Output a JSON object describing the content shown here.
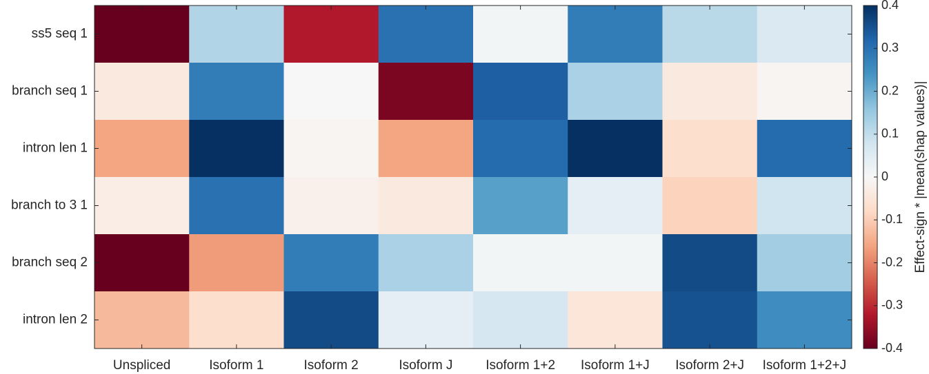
{
  "chart_data": {
    "type": "heatmap",
    "rows": [
      "ss5 seq 1",
      "branch seq 1",
      "intron len 1",
      "branch to 3 1",
      "branch seq 2",
      "intron len 2"
    ],
    "columns": [
      "Unspliced",
      "Isoform 1",
      "Isoform 2",
      "Isoform J",
      "Isoform 1+2",
      "Isoform 1+J",
      "Isoform 2+J",
      "Isoform 1+2+J"
    ],
    "values": [
      [
        -0.4,
        0.12,
        -0.32,
        0.3,
        0.01,
        0.28,
        0.11,
        0.06
      ],
      [
        -0.04,
        0.28,
        0.0,
        -0.38,
        0.33,
        0.13,
        -0.04,
        -0.01
      ],
      [
        -0.16,
        0.4,
        -0.01,
        -0.16,
        0.31,
        0.41,
        -0.07,
        0.31
      ],
      [
        -0.03,
        0.3,
        -0.02,
        -0.04,
        0.22,
        0.04,
        -0.09,
        0.08
      ],
      [
        -0.4,
        -0.17,
        0.28,
        0.13,
        0.01,
        0.01,
        0.36,
        0.14
      ],
      [
        -0.13,
        -0.07,
        0.36,
        0.04,
        0.07,
        -0.05,
        0.35,
        0.25
      ]
    ],
    "colorbar": {
      "label": "Effect-sign * |mean(shap values)|",
      "min": -0.4,
      "max": 0.4,
      "ticks": [
        "0.4",
        "0.3",
        "0.2",
        "0.1",
        "0",
        "-0.1",
        "-0.2",
        "-0.3",
        "-0.4"
      ],
      "colormap": "RdBu"
    },
    "grid": false
  }
}
